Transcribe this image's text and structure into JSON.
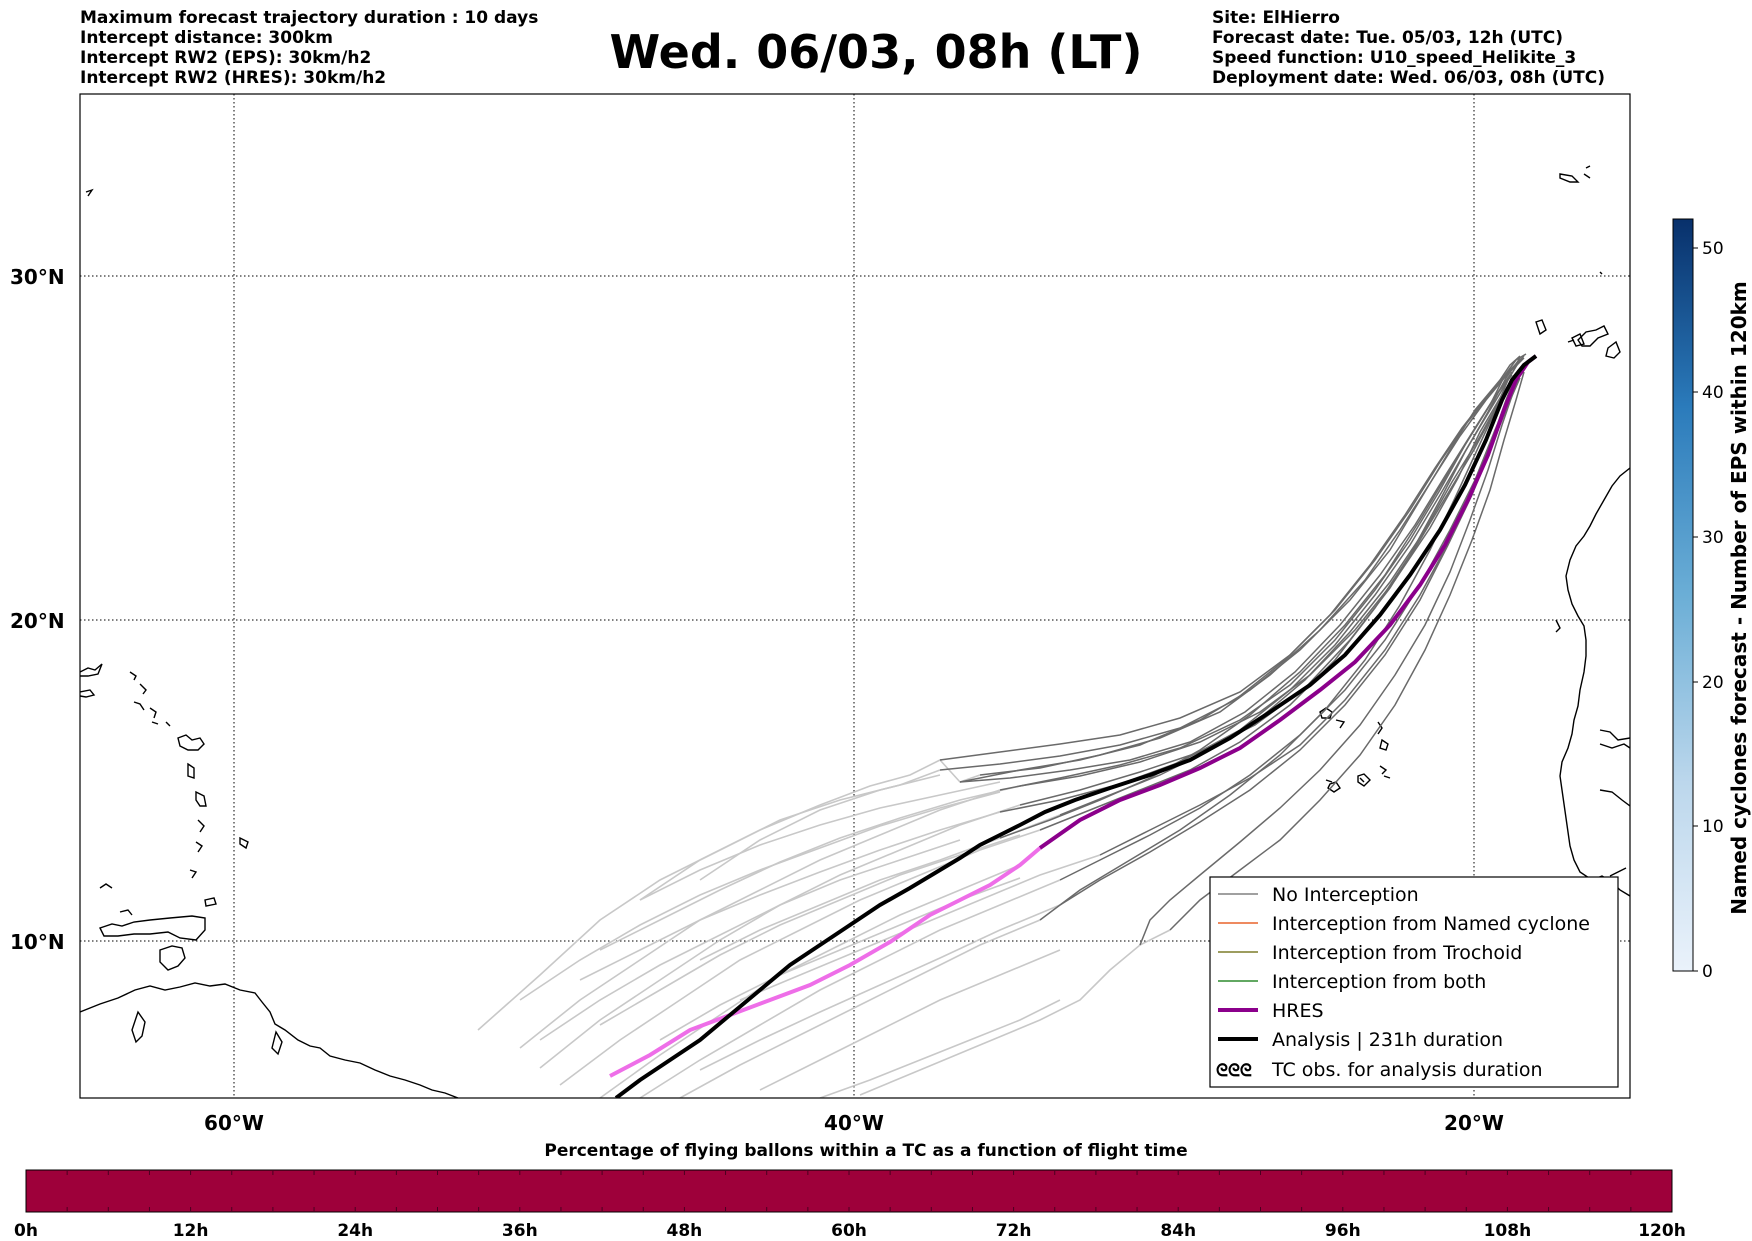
{
  "header_left": [
    "Maximum forecast trajectory duration : 10 days",
    "Intercept distance: 300km",
    "Intercept RW2 (EPS):  30km/h2",
    "Intercept RW2 (HRES): 30km/h2"
  ],
  "title": "Wed. 06/03, 08h (LT)",
  "header_right": [
    "Site: ElHierro",
    "Forecast date: Tue. 05/03, 12h (UTC)",
    "Speed function: U10_speed_Helikite_3",
    "Deployment date: Wed. 06/03, 08h (UTC)"
  ],
  "map": {
    "lon_range": [
      -65,
      -15
    ],
    "lat_range": [
      5,
      35
    ],
    "lon_ticks": [
      "60°W",
      "40°W",
      "20°W"
    ],
    "lat_ticks": [
      "30°N",
      "20°N",
      "10°N"
    ],
    "grid": "dotted"
  },
  "legend": {
    "placement": "lower-right",
    "items": [
      {
        "label": "No Interception",
        "color": "#808080"
      },
      {
        "label": "Interception from Named cyclone",
        "color": "#e8642c"
      },
      {
        "label": "Interception from Trochoid",
        "color": "#7d7d2a"
      },
      {
        "label": "Interception from both",
        "color": "#2e8b2e"
      },
      {
        "label": "HRES",
        "color": "#8b008b"
      },
      {
        "label": "Analysis | 231h duration",
        "color": "#000000"
      },
      {
        "label": "TC obs. for analysis duration",
        "symbol": "ᘓᘓᘓ"
      }
    ]
  },
  "colorbar_right": {
    "label": "Named cyclones forecast - Number of EPS within 120km",
    "ticks": [
      "0",
      "10",
      "20",
      "30",
      "40",
      "50"
    ],
    "min": 0,
    "max": 52,
    "colors": [
      "#e8f0f9",
      "#08306b"
    ]
  },
  "colorbar_bottom": {
    "label": "Percentage of flying ballons within a TC as a function of flight time",
    "ticks": [
      "0h",
      "12h",
      "24h",
      "36h",
      "48h",
      "60h",
      "72h",
      "84h",
      "96h",
      "108h",
      "120h"
    ],
    "fill_color": "#9e003a"
  }
}
